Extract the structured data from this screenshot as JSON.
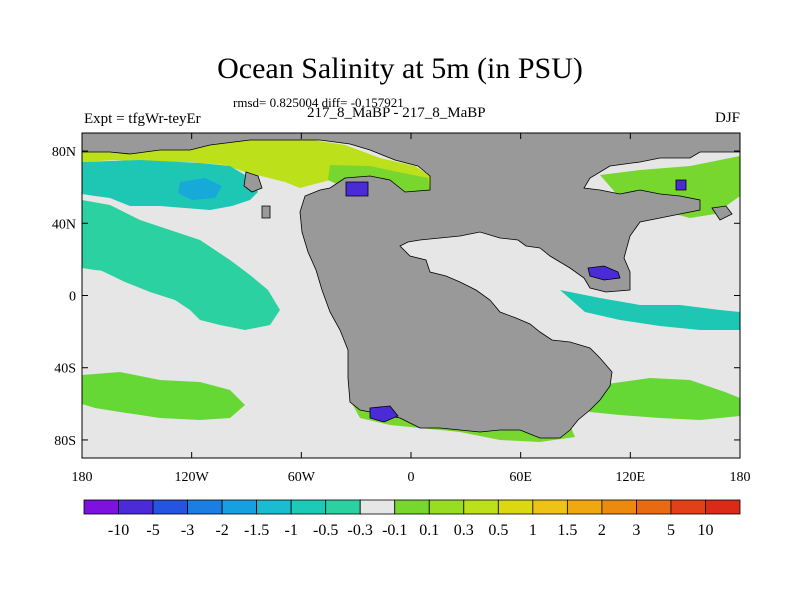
{
  "header": {
    "title": "Ocean Salinity at 5m (in PSU)",
    "stats": "rmsd= 0.825004 diff= -0.157921",
    "experiment": "Expt = tfgWr-teyEr",
    "runs": "217_8_MaBP - 217_8_MaBP",
    "season": "DJF"
  },
  "map": {
    "x_ticks": [
      {
        "lon": -180,
        "label": "180"
      },
      {
        "lon": -120,
        "label": "120W"
      },
      {
        "lon": -60,
        "label": "60W"
      },
      {
        "lon": 0,
        "label": "0"
      },
      {
        "lon": 60,
        "label": "60E"
      },
      {
        "lon": 120,
        "label": "120E"
      },
      {
        "lon": 180,
        "label": "180"
      }
    ],
    "y_ticks": [
      {
        "lat": 80,
        "label": "80N"
      },
      {
        "lat": 40,
        "label": "40N"
      },
      {
        "lat": 0,
        "label": "0"
      },
      {
        "lat": -40,
        "label": "40S"
      },
      {
        "lat": -80,
        "label": "80S"
      }
    ],
    "lon_range": [
      -180,
      180
    ],
    "lat_range": [
      -90,
      90
    ],
    "colors": {
      "land": "#999999",
      "ocean_neutral": "#e6e6e6"
    },
    "fields": [
      {
        "id": "arctic-band",
        "level": "0.5",
        "color": "#bce01a"
      },
      {
        "id": "arctic-low",
        "level": "0.3",
        "color": "#77d72e"
      },
      {
        "id": "north-pacific",
        "level": "-0.5",
        "color": "#1ec7b4"
      },
      {
        "id": "north-pacific-core",
        "level": "-1",
        "color": "#17a9d8"
      },
      {
        "id": "tropical-pacific",
        "level": "-0.3",
        "color": "#2bd1a0"
      },
      {
        "id": "south-pacific",
        "level": "0.3",
        "color": "#66d835"
      },
      {
        "id": "antarctic-fresh",
        "level": "-5",
        "color": "#4b2ad8"
      },
      {
        "id": "arctic-fresh",
        "level": "-5",
        "color": "#4b2ad8"
      },
      {
        "id": "asia-inland",
        "level": "-5",
        "color": "#4b2ad8"
      },
      {
        "id": "east-ocean",
        "level": "0.3",
        "color": "#77d72e"
      }
    ]
  },
  "colorbar": {
    "levels": [
      "-10",
      "-5",
      "-3",
      "-2",
      "-1.5",
      "-1",
      "-0.5",
      "-0.3",
      "-0.1",
      "0.1",
      "0.3",
      "0.5",
      "1",
      "1.5",
      "2",
      "3",
      "5",
      "10"
    ],
    "colors": [
      "#7d12e0",
      "#4b2ad8",
      "#2454e0",
      "#1a7ee3",
      "#17a0df",
      "#19bcd0",
      "#1ccab8",
      "#2bd1a0",
      "#e6e6e6",
      "#77d72e",
      "#99dd22",
      "#bce01a",
      "#dbd812",
      "#eec315",
      "#f0a810",
      "#ec8a10",
      "#e86a12",
      "#e3401a",
      "#dc2a18"
    ]
  }
}
